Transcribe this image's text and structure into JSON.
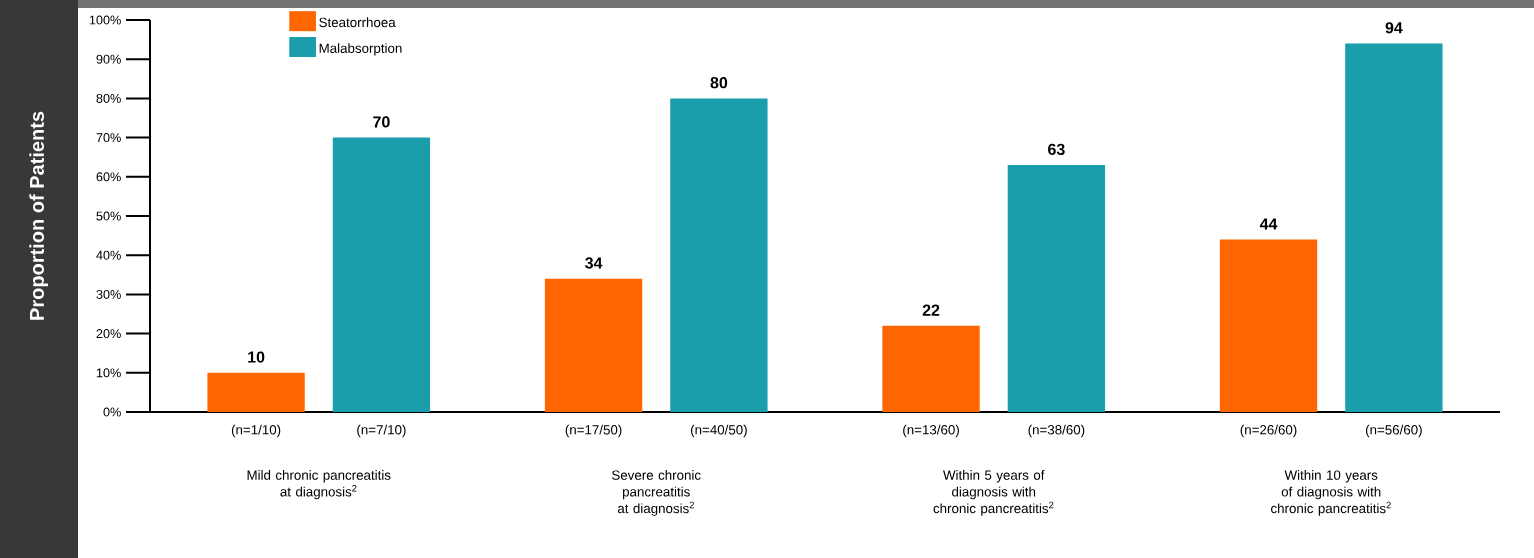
{
  "chart_data": {
    "type": "bar",
    "ylabel": "Proportion of Patients",
    "categories": [
      "Mild chronic pancreatitis at diagnosis$^{2}$",
      "Severe chronic pancreatitis at diagnosis$^{2}$",
      "Within 5 years of diagnosis with chronic pancreatitis$^{2}$",
      "Within 10 years of diagnosis with chronic pancreatitis$^{2}$"
    ],
    "series": [
      {
        "name": "Steatorrhoea",
        "color": "#ff6600",
        "values": [
          10,
          34,
          22,
          44
        ]
      },
      {
        "name": "Malabsorption",
        "color": "#1a9eab",
        "values": [
          70,
          80,
          63,
          94
        ]
      }
    ],
    "ylim": [
      0,
      100
    ],
    "yticks": [
      {
        "value": 0,
        "label": "0%"
      },
      {
        "value": 10,
        "label": "10%"
      },
      {
        "value": 20,
        "label": "20%"
      },
      {
        "value": 30,
        "label": "30%"
      },
      {
        "value": 40,
        "label": "40%"
      },
      {
        "value": 50,
        "label": "50%"
      },
      {
        "value": 60,
        "label": "60%"
      },
      {
        "value": 70,
        "label": "70%"
      },
      {
        "value": 80,
        "label": "80%"
      },
      {
        "value": 90,
        "label": "90%"
      },
      {
        "value": 100,
        "label": "100%"
      }
    ],
    "data_labels": true,
    "legend": "top left",
    "annotations": [
      "(n=1/10)",
      "(n=7/10)",
      "(n=17/50)",
      "(n=40/50)",
      "(n=13/60)",
      "(n=38/60)",
      "(n=26/60)",
      "(n=56/60)"
    ]
  }
}
